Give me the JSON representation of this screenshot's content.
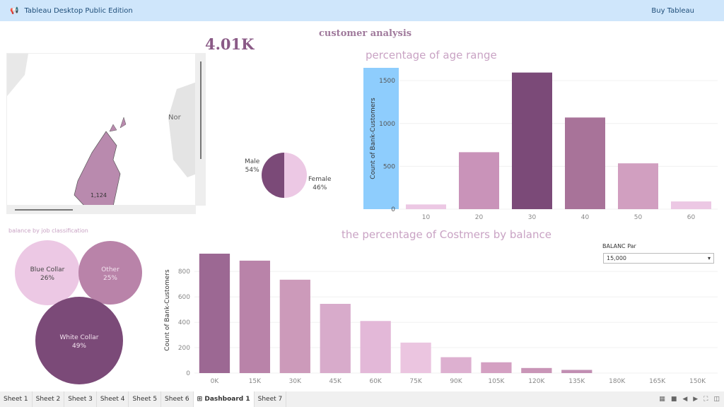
{
  "topbar": {
    "title": "Tableau Desktop Public Edition",
    "buy": "Buy Tableau",
    "icon": "megaphone-icon"
  },
  "dashboard": {
    "title": "customer analysis",
    "kpi": "4.01K"
  },
  "map": {
    "label_country": "Nor",
    "region_value": "1,124"
  },
  "gender": {
    "male_label": "Male",
    "male_pct": "54%",
    "female_label": "Female",
    "female_pct": "46%",
    "male_value": 54,
    "female_value": 46,
    "colors": {
      "male": "#7b4a78",
      "female": "#ecc8e4"
    }
  },
  "job": {
    "title": "balance by job classification",
    "items": [
      {
        "label": "Blue Collar",
        "pct": "26%"
      },
      {
        "label": "Other",
        "pct": "25%"
      },
      {
        "label": "White Collar",
        "pct": "49%"
      }
    ]
  },
  "param": {
    "label": "BALANC Par",
    "value": "15,000"
  },
  "chart_data": [
    {
      "type": "bar",
      "title": "percentage of age range",
      "xlabel": "",
      "ylabel": "Count of Bank-Customers",
      "categories": [
        "10",
        "20",
        "30",
        "40",
        "50",
        "60"
      ],
      "values": [
        55,
        665,
        1595,
        1070,
        535,
        90
      ],
      "ylim": [
        0,
        1650
      ],
      "yticks": [
        0,
        500,
        1000,
        1500
      ],
      "colors": [
        "#ecc8e4",
        "#c993b9",
        "#7b4a78",
        "#a87399",
        "#d19fc0",
        "#ecc8e4"
      ]
    },
    {
      "type": "bar",
      "title": "the percentage of Costmers by balance",
      "xlabel": "",
      "ylabel": "Count of Bank-Customers",
      "categories": [
        "0K",
        "15K",
        "30K",
        "45K",
        "60K",
        "75K",
        "90K",
        "105K",
        "120K",
        "135K",
        "180K",
        "165K",
        "150K"
      ],
      "values": [
        940,
        885,
        735,
        545,
        410,
        240,
        125,
        85,
        40,
        25,
        0,
        0,
        0
      ],
      "ylim": [
        0,
        990
      ],
      "yticks": [
        0,
        200,
        400,
        600,
        800
      ],
      "colors": [
        "#9c6893",
        "#b983a9",
        "#cc9aba",
        "#d8abcb",
        "#e3b8d8",
        "#ebc5e0",
        "#ddb0d0",
        "#d4a0c2",
        "#c995b7",
        "#c18eb2",
        "#ccc",
        "#ccc",
        "#ccc"
      ]
    }
  ],
  "sheets": [
    "Sheet 1",
    "Sheet 2",
    "Sheet 3",
    "Sheet 4",
    "Sheet 5",
    "Sheet 6",
    "Dashboard 1",
    "Sheet 7"
  ]
}
